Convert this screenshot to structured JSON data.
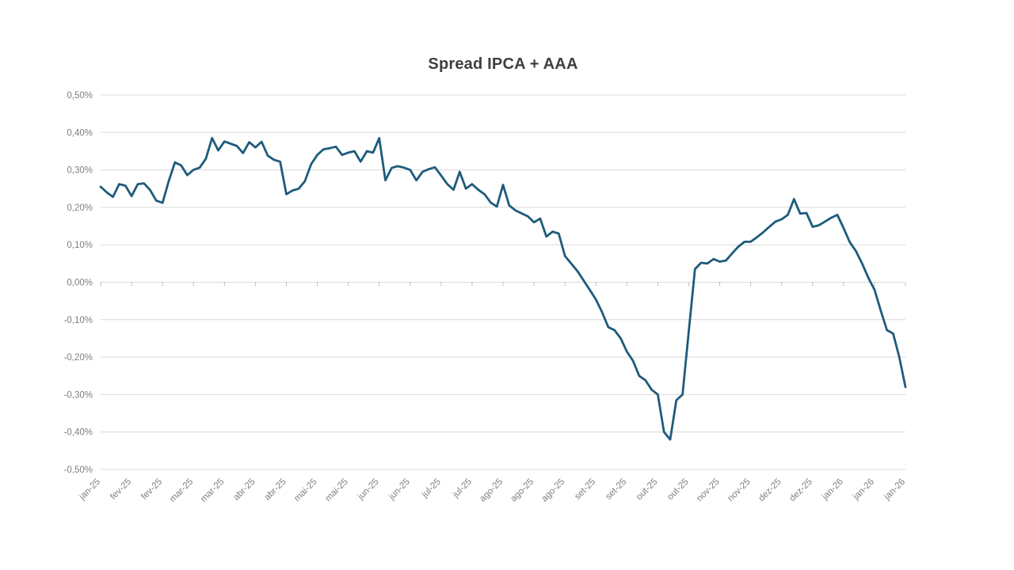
{
  "chart": {
    "title": "Spread IPCA + AAA"
  },
  "chart_data": {
    "type": "line",
    "title": "Spread IPCA + AAA",
    "xlabel": "",
    "ylabel": "",
    "ylim": [
      -0.5,
      0.5
    ],
    "y_step": 0.1,
    "value_unit": "%",
    "decimal_style": "comma",
    "grid": "horizontal",
    "legend": "none",
    "line_color": "#1e5b7b",
    "grid_color": "#d9d9d9",
    "tick_color": "#bfbfbf",
    "label_color": "#7f7f7f",
    "title_color": "#3f3f3f",
    "y_tick_labels": [
      "0,50%",
      "0,40%",
      "0,30%",
      "0,20%",
      "0,10%",
      "0,00%",
      "-0,10%",
      "-0,20%",
      "-0,30%",
      "-0,40%",
      "-0,50%"
    ],
    "x_tick_labels": [
      "jan-25",
      "fev-25",
      "fev-25",
      "mar-25",
      "mar-25",
      "abr-25",
      "abr-25",
      "mai-25",
      "mai-25",
      "jun-25",
      "jun-25",
      "jul-25",
      "jul-25",
      "ago-25",
      "ago-25",
      "ago-25",
      "set-25",
      "set-25",
      "out-25",
      "out-25",
      "nov-25",
      "nov-25",
      "dez-25",
      "dez-25",
      "jan-26",
      "jan-26",
      "jan-26"
    ],
    "series": [
      {
        "name": "Spread IPCA + AAA",
        "values": [
          0.255,
          0.24,
          0.228,
          0.262,
          0.258,
          0.23,
          0.262,
          0.264,
          0.246,
          0.218,
          0.212,
          0.27,
          0.32,
          0.312,
          0.286,
          0.3,
          0.306,
          0.33,
          0.385,
          0.352,
          0.376,
          0.37,
          0.364,
          0.345,
          0.374,
          0.36,
          0.375,
          0.338,
          0.327,
          0.322,
          0.235,
          0.245,
          0.25,
          0.27,
          0.315,
          0.34,
          0.355,
          0.358,
          0.362,
          0.34,
          0.346,
          0.35,
          0.322,
          0.35,
          0.346,
          0.385,
          0.272,
          0.305,
          0.31,
          0.306,
          0.3,
          0.272,
          0.295,
          0.302,
          0.307,
          0.285,
          0.262,
          0.247,
          0.295,
          0.25,
          0.262,
          0.247,
          0.235,
          0.213,
          0.202,
          0.26,
          0.205,
          0.192,
          0.184,
          0.176,
          0.16,
          0.17,
          0.122,
          0.135,
          0.13,
          0.07,
          0.05,
          0.03,
          0.005,
          -0.02,
          -0.046,
          -0.08,
          -0.12,
          -0.128,
          -0.15,
          -0.185,
          -0.21,
          -0.25,
          -0.262,
          -0.287,
          -0.3,
          -0.4,
          -0.42,
          -0.315,
          -0.3,
          -0.13,
          0.035,
          0.052,
          0.05,
          0.062,
          0.055,
          0.058,
          0.077,
          0.095,
          0.108,
          0.108,
          0.12,
          0.133,
          0.148,
          0.162,
          0.168,
          0.18,
          0.222,
          0.183,
          0.185,
          0.148,
          0.152,
          0.162,
          0.172,
          0.18,
          0.145,
          0.107,
          0.083,
          0.05,
          0.012,
          -0.02,
          -0.075,
          -0.128,
          -0.137,
          -0.2,
          -0.28
        ]
      }
    ]
  }
}
